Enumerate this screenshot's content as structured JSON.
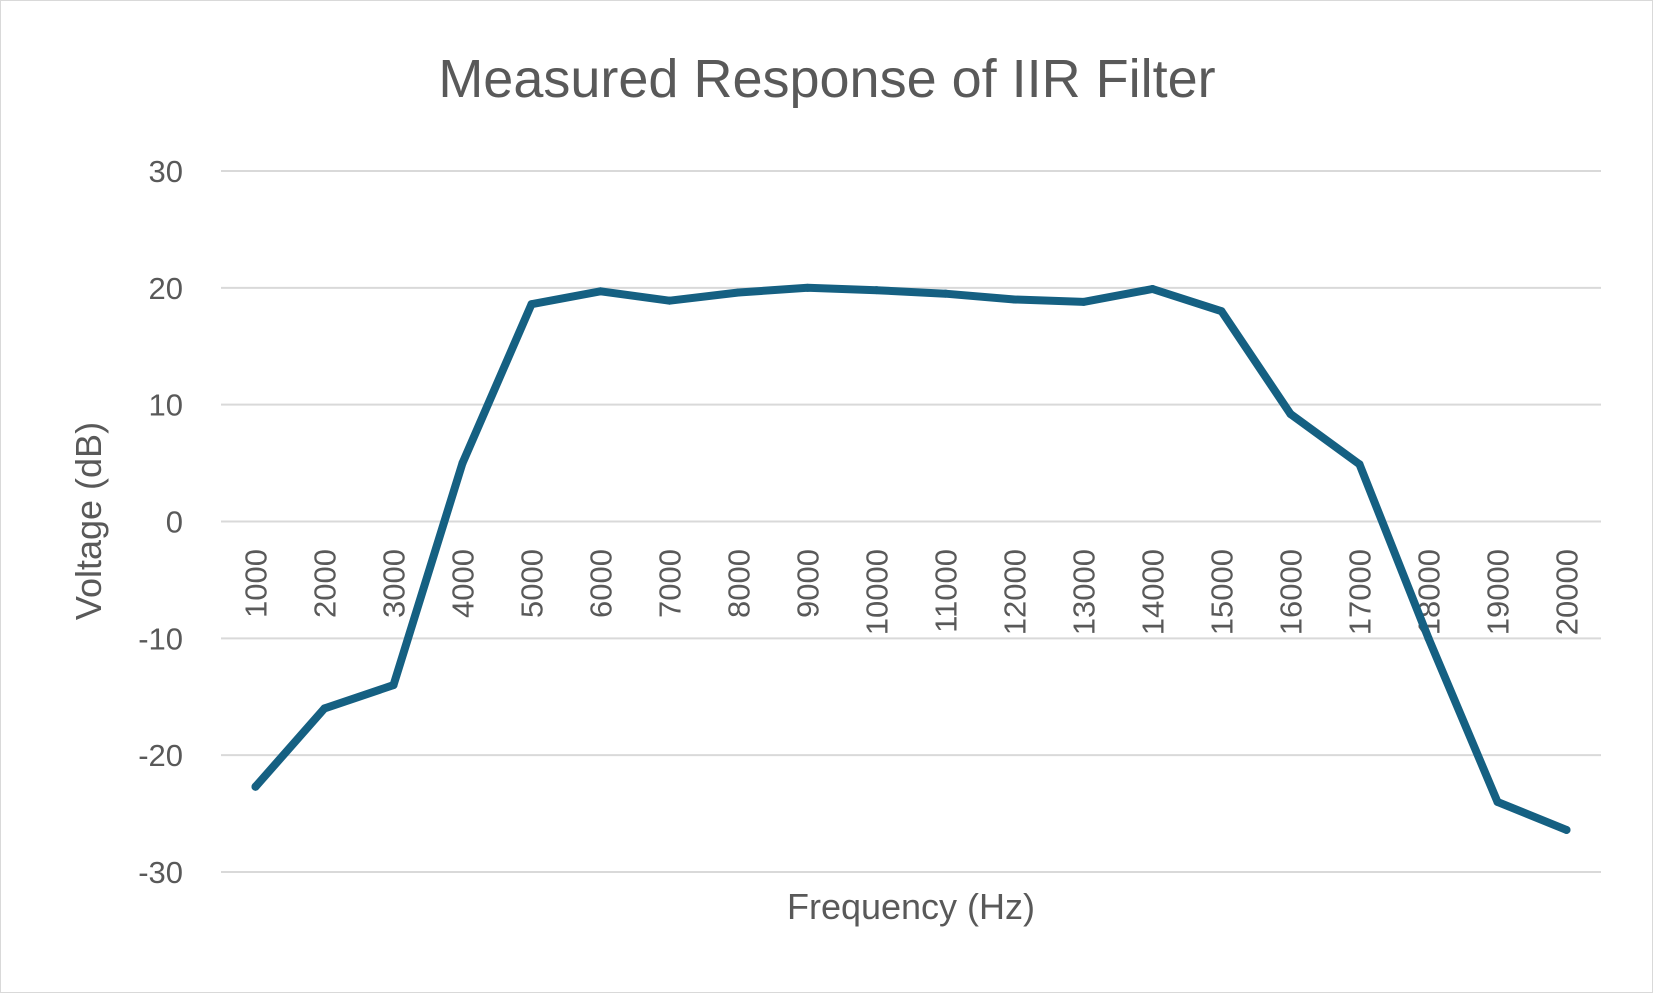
{
  "chart_data": {
    "type": "line",
    "title": "Measured Response of IIR Filter",
    "xlabel": "Frequency (Hz)",
    "ylabel": "Voltage (dB)",
    "ylim": [
      -30,
      30
    ],
    "yticks": [
      30,
      20,
      10,
      0,
      -10,
      -20,
      -30
    ],
    "grid": true,
    "legend": "none",
    "x": [
      1000,
      2000,
      3000,
      4000,
      5000,
      6000,
      7000,
      8000,
      9000,
      10000,
      11000,
      12000,
      13000,
      14000,
      15000,
      16000,
      17000,
      18000,
      19000,
      20000
    ],
    "categories": [
      "1000",
      "2000",
      "3000",
      "4000",
      "5000",
      "6000",
      "7000",
      "8000",
      "9000",
      "10000",
      "11000",
      "12000",
      "13000",
      "14000",
      "15000",
      "16000",
      "17000",
      "18000",
      "19000",
      "20000"
    ],
    "series": [
      {
        "values": [
          -22.7,
          -16,
          -14,
          5,
          18.6,
          19.7,
          18.9,
          19.6,
          20,
          19.8,
          19.5,
          19,
          18.8,
          19.9,
          18,
          9.2,
          4.9,
          -10,
          -24,
          -26.4
        ],
        "color": "#156082"
      }
    ]
  }
}
